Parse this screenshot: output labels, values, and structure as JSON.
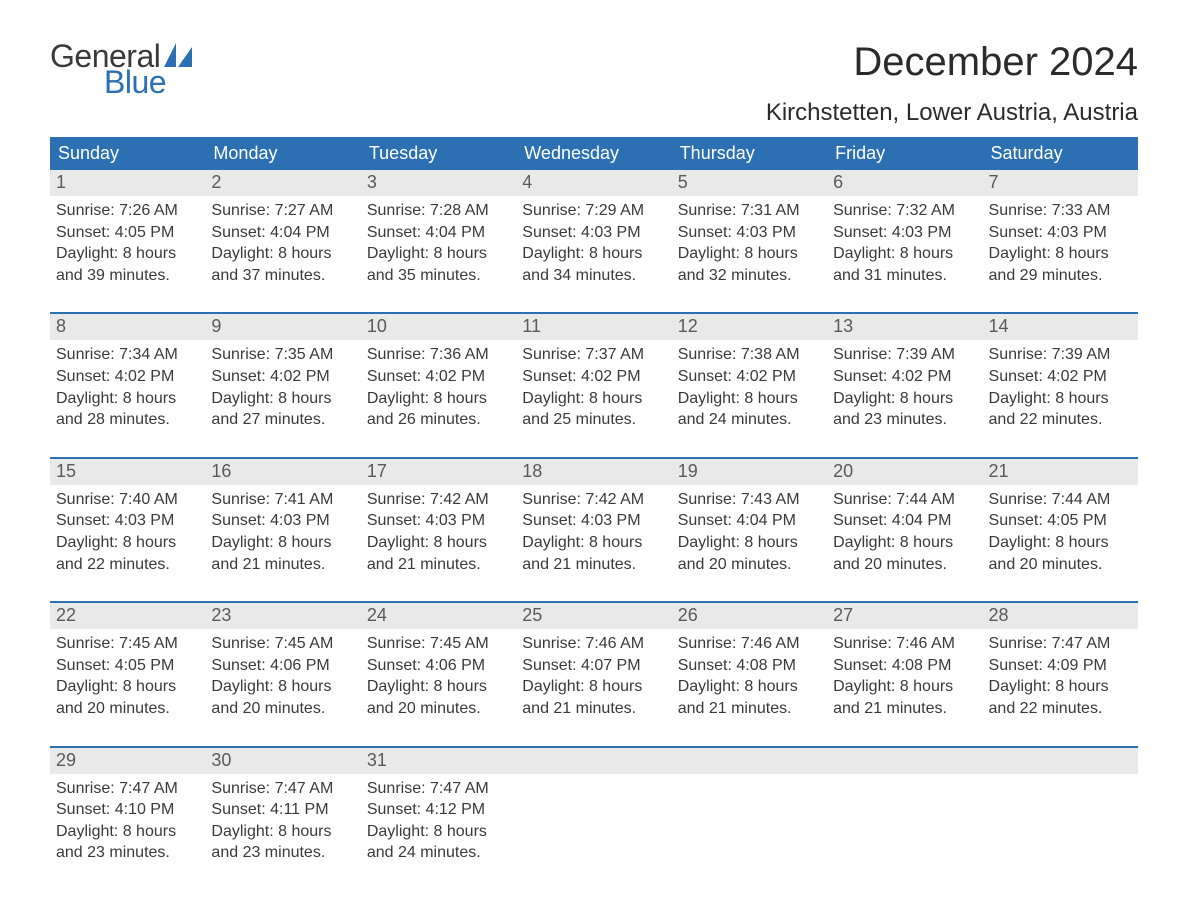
{
  "logo": {
    "general": "General",
    "blue": "Blue",
    "sail_color": "#2c6fb3"
  },
  "title": "December 2024",
  "location": "Kirchstetten, Lower Austria, Austria",
  "colors": {
    "header_bg": "#2c6fb3",
    "header_text": "#ffffff",
    "daynum_bg": "#e9e9e9",
    "daynum_text": "#5a5a5a",
    "body_text": "#3a3a3a",
    "rule": "#2c6fb3",
    "page_bg": "#ffffff"
  },
  "typography": {
    "title_fontsize": 40,
    "location_fontsize": 24,
    "dayhead_fontsize": 18,
    "daynum_fontsize": 18,
    "body_fontsize": 16,
    "font_family": "Arial"
  },
  "day_headers": [
    "Sunday",
    "Monday",
    "Tuesday",
    "Wednesday",
    "Thursday",
    "Friday",
    "Saturday"
  ],
  "weeks": [
    [
      {
        "num": "1",
        "sunrise": "Sunrise: 7:26 AM",
        "sunset": "Sunset: 4:05 PM",
        "dl1": "Daylight: 8 hours",
        "dl2": "and 39 minutes."
      },
      {
        "num": "2",
        "sunrise": "Sunrise: 7:27 AM",
        "sunset": "Sunset: 4:04 PM",
        "dl1": "Daylight: 8 hours",
        "dl2": "and 37 minutes."
      },
      {
        "num": "3",
        "sunrise": "Sunrise: 7:28 AM",
        "sunset": "Sunset: 4:04 PM",
        "dl1": "Daylight: 8 hours",
        "dl2": "and 35 minutes."
      },
      {
        "num": "4",
        "sunrise": "Sunrise: 7:29 AM",
        "sunset": "Sunset: 4:03 PM",
        "dl1": "Daylight: 8 hours",
        "dl2": "and 34 minutes."
      },
      {
        "num": "5",
        "sunrise": "Sunrise: 7:31 AM",
        "sunset": "Sunset: 4:03 PM",
        "dl1": "Daylight: 8 hours",
        "dl2": "and 32 minutes."
      },
      {
        "num": "6",
        "sunrise": "Sunrise: 7:32 AM",
        "sunset": "Sunset: 4:03 PM",
        "dl1": "Daylight: 8 hours",
        "dl2": "and 31 minutes."
      },
      {
        "num": "7",
        "sunrise": "Sunrise: 7:33 AM",
        "sunset": "Sunset: 4:03 PM",
        "dl1": "Daylight: 8 hours",
        "dl2": "and 29 minutes."
      }
    ],
    [
      {
        "num": "8",
        "sunrise": "Sunrise: 7:34 AM",
        "sunset": "Sunset: 4:02 PM",
        "dl1": "Daylight: 8 hours",
        "dl2": "and 28 minutes."
      },
      {
        "num": "9",
        "sunrise": "Sunrise: 7:35 AM",
        "sunset": "Sunset: 4:02 PM",
        "dl1": "Daylight: 8 hours",
        "dl2": "and 27 minutes."
      },
      {
        "num": "10",
        "sunrise": "Sunrise: 7:36 AM",
        "sunset": "Sunset: 4:02 PM",
        "dl1": "Daylight: 8 hours",
        "dl2": "and 26 minutes."
      },
      {
        "num": "11",
        "sunrise": "Sunrise: 7:37 AM",
        "sunset": "Sunset: 4:02 PM",
        "dl1": "Daylight: 8 hours",
        "dl2": "and 25 minutes."
      },
      {
        "num": "12",
        "sunrise": "Sunrise: 7:38 AM",
        "sunset": "Sunset: 4:02 PM",
        "dl1": "Daylight: 8 hours",
        "dl2": "and 24 minutes."
      },
      {
        "num": "13",
        "sunrise": "Sunrise: 7:39 AM",
        "sunset": "Sunset: 4:02 PM",
        "dl1": "Daylight: 8 hours",
        "dl2": "and 23 minutes."
      },
      {
        "num": "14",
        "sunrise": "Sunrise: 7:39 AM",
        "sunset": "Sunset: 4:02 PM",
        "dl1": "Daylight: 8 hours",
        "dl2": "and 22 minutes."
      }
    ],
    [
      {
        "num": "15",
        "sunrise": "Sunrise: 7:40 AM",
        "sunset": "Sunset: 4:03 PM",
        "dl1": "Daylight: 8 hours",
        "dl2": "and 22 minutes."
      },
      {
        "num": "16",
        "sunrise": "Sunrise: 7:41 AM",
        "sunset": "Sunset: 4:03 PM",
        "dl1": "Daylight: 8 hours",
        "dl2": "and 21 minutes."
      },
      {
        "num": "17",
        "sunrise": "Sunrise: 7:42 AM",
        "sunset": "Sunset: 4:03 PM",
        "dl1": "Daylight: 8 hours",
        "dl2": "and 21 minutes."
      },
      {
        "num": "18",
        "sunrise": "Sunrise: 7:42 AM",
        "sunset": "Sunset: 4:03 PM",
        "dl1": "Daylight: 8 hours",
        "dl2": "and 21 minutes."
      },
      {
        "num": "19",
        "sunrise": "Sunrise: 7:43 AM",
        "sunset": "Sunset: 4:04 PM",
        "dl1": "Daylight: 8 hours",
        "dl2": "and 20 minutes."
      },
      {
        "num": "20",
        "sunrise": "Sunrise: 7:44 AM",
        "sunset": "Sunset: 4:04 PM",
        "dl1": "Daylight: 8 hours",
        "dl2": "and 20 minutes."
      },
      {
        "num": "21",
        "sunrise": "Sunrise: 7:44 AM",
        "sunset": "Sunset: 4:05 PM",
        "dl1": "Daylight: 8 hours",
        "dl2": "and 20 minutes."
      }
    ],
    [
      {
        "num": "22",
        "sunrise": "Sunrise: 7:45 AM",
        "sunset": "Sunset: 4:05 PM",
        "dl1": "Daylight: 8 hours",
        "dl2": "and 20 minutes."
      },
      {
        "num": "23",
        "sunrise": "Sunrise: 7:45 AM",
        "sunset": "Sunset: 4:06 PM",
        "dl1": "Daylight: 8 hours",
        "dl2": "and 20 minutes."
      },
      {
        "num": "24",
        "sunrise": "Sunrise: 7:45 AM",
        "sunset": "Sunset: 4:06 PM",
        "dl1": "Daylight: 8 hours",
        "dl2": "and 20 minutes."
      },
      {
        "num": "25",
        "sunrise": "Sunrise: 7:46 AM",
        "sunset": "Sunset: 4:07 PM",
        "dl1": "Daylight: 8 hours",
        "dl2": "and 21 minutes."
      },
      {
        "num": "26",
        "sunrise": "Sunrise: 7:46 AM",
        "sunset": "Sunset: 4:08 PM",
        "dl1": "Daylight: 8 hours",
        "dl2": "and 21 minutes."
      },
      {
        "num": "27",
        "sunrise": "Sunrise: 7:46 AM",
        "sunset": "Sunset: 4:08 PM",
        "dl1": "Daylight: 8 hours",
        "dl2": "and 21 minutes."
      },
      {
        "num": "28",
        "sunrise": "Sunrise: 7:47 AM",
        "sunset": "Sunset: 4:09 PM",
        "dl1": "Daylight: 8 hours",
        "dl2": "and 22 minutes."
      }
    ],
    [
      {
        "num": "29",
        "sunrise": "Sunrise: 7:47 AM",
        "sunset": "Sunset: 4:10 PM",
        "dl1": "Daylight: 8 hours",
        "dl2": "and 23 minutes."
      },
      {
        "num": "30",
        "sunrise": "Sunrise: 7:47 AM",
        "sunset": "Sunset: 4:11 PM",
        "dl1": "Daylight: 8 hours",
        "dl2": "and 23 minutes."
      },
      {
        "num": "31",
        "sunrise": "Sunrise: 7:47 AM",
        "sunset": "Sunset: 4:12 PM",
        "dl1": "Daylight: 8 hours",
        "dl2": "and 24 minutes."
      },
      {
        "num": "",
        "sunrise": "",
        "sunset": "",
        "dl1": "",
        "dl2": ""
      },
      {
        "num": "",
        "sunrise": "",
        "sunset": "",
        "dl1": "",
        "dl2": ""
      },
      {
        "num": "",
        "sunrise": "",
        "sunset": "",
        "dl1": "",
        "dl2": ""
      },
      {
        "num": "",
        "sunrise": "",
        "sunset": "",
        "dl1": "",
        "dl2": ""
      }
    ]
  ]
}
